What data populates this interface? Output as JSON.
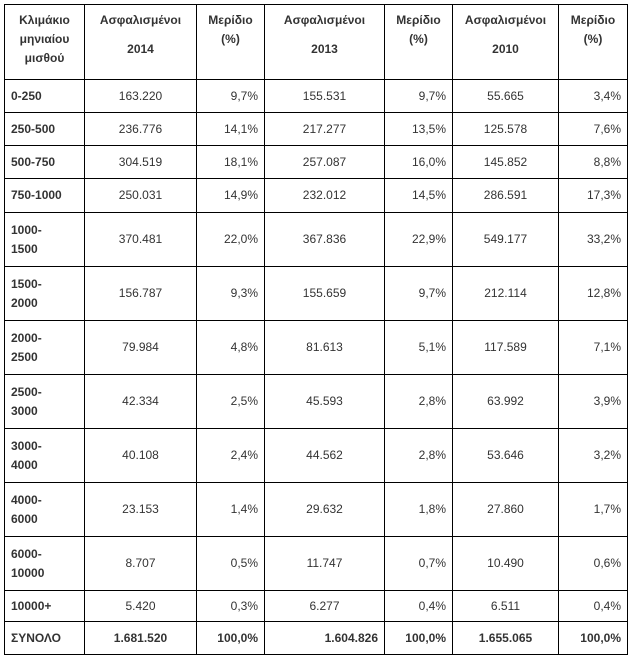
{
  "headers": {
    "bracket": [
      "Κλιμάκιο",
      "μηνιαίου",
      "μισθού"
    ],
    "ins2014": [
      "Ασφαλισμένοι",
      "2014"
    ],
    "share1": [
      "Μερίδιο",
      "(%)"
    ],
    "ins2013": [
      "Ασφαλισμένοι",
      "2013"
    ],
    "share2": [
      "Μερίδιο",
      "(%)"
    ],
    "ins2010": [
      "Ασφαλισμένοι",
      "2010"
    ],
    "share3": [
      "Μερίδιο",
      "(%)"
    ]
  },
  "rows": [
    {
      "bracket": [
        "0-250"
      ],
      "i14": "163.220",
      "s14": "9,7%",
      "i13": "155.531",
      "s13": "9,7%",
      "i10": "55.665",
      "s10": "3,4%"
    },
    {
      "bracket": [
        "250-500"
      ],
      "i14": "236.776",
      "s14": "14,1%",
      "i13": "217.277",
      "s13": "13,5%",
      "i10": "125.578",
      "s10": "7,6%"
    },
    {
      "bracket": [
        "500-750"
      ],
      "i14": "304.519",
      "s14": "18,1%",
      "i13": "257.087",
      "s13": "16,0%",
      "i10": "145.852",
      "s10": "8,8%"
    },
    {
      "bracket": [
        "750-1000"
      ],
      "i14": "250.031",
      "s14": "14,9%",
      "i13": "232.012",
      "s13": "14,5%",
      "i10": "286.591",
      "s10": "17,3%"
    },
    {
      "bracket": [
        "1000-",
        "1500"
      ],
      "i14": "370.481",
      "s14": "22,0%",
      "i13": "367.836",
      "s13": "22,9%",
      "i10": "549.177",
      "s10": "33,2%"
    },
    {
      "bracket": [
        "1500-",
        "2000"
      ],
      "i14": "156.787",
      "s14": "9,3%",
      "i13": "155.659",
      "s13": "9,7%",
      "i10": "212.114",
      "s10": "12,8%"
    },
    {
      "bracket": [
        "2000-",
        "2500"
      ],
      "i14": "79.984",
      "s14": "4,8%",
      "i13": "81.613",
      "s13": "5,1%",
      "i10": "117.589",
      "s10": "7,1%"
    },
    {
      "bracket": [
        "2500-",
        "3000"
      ],
      "i14": "42.334",
      "s14": "2,5%",
      "i13": "45.593",
      "s13": "2,8%",
      "i10": "63.992",
      "s10": "3,9%"
    },
    {
      "bracket": [
        "3000-",
        "4000"
      ],
      "i14": "40.108",
      "s14": "2,4%",
      "i13": "44.562",
      "s13": "2,8%",
      "i10": "53.646",
      "s10": "3,2%"
    },
    {
      "bracket": [
        "4000-",
        "6000"
      ],
      "i14": "23.153",
      "s14": "1,4%",
      "i13": "29.632",
      "s13": "1,8%",
      "i10": "27.860",
      "s10": "1,7%"
    },
    {
      "bracket": [
        "6000-",
        "10000"
      ],
      "i14": "8.707",
      "s14": "0,5%",
      "i13": "11.747",
      "s13": "0,7%",
      "i10": "10.490",
      "s10": "0,6%"
    },
    {
      "bracket": [
        "10000+"
      ],
      "i14": "5.420",
      "s14": "0,3%",
      "i13": "6.277",
      "s13": "0,4%",
      "i10": "6.511",
      "s10": "0,4%"
    }
  ],
  "total": {
    "bracket": "ΣΥΝΟΛΟ",
    "i14": "1.681.520",
    "s14": "100,0%",
    "i13": "1.604.826",
    "s13": "100,0%",
    "i10": "1.655.065",
    "s10": "100,0%"
  }
}
